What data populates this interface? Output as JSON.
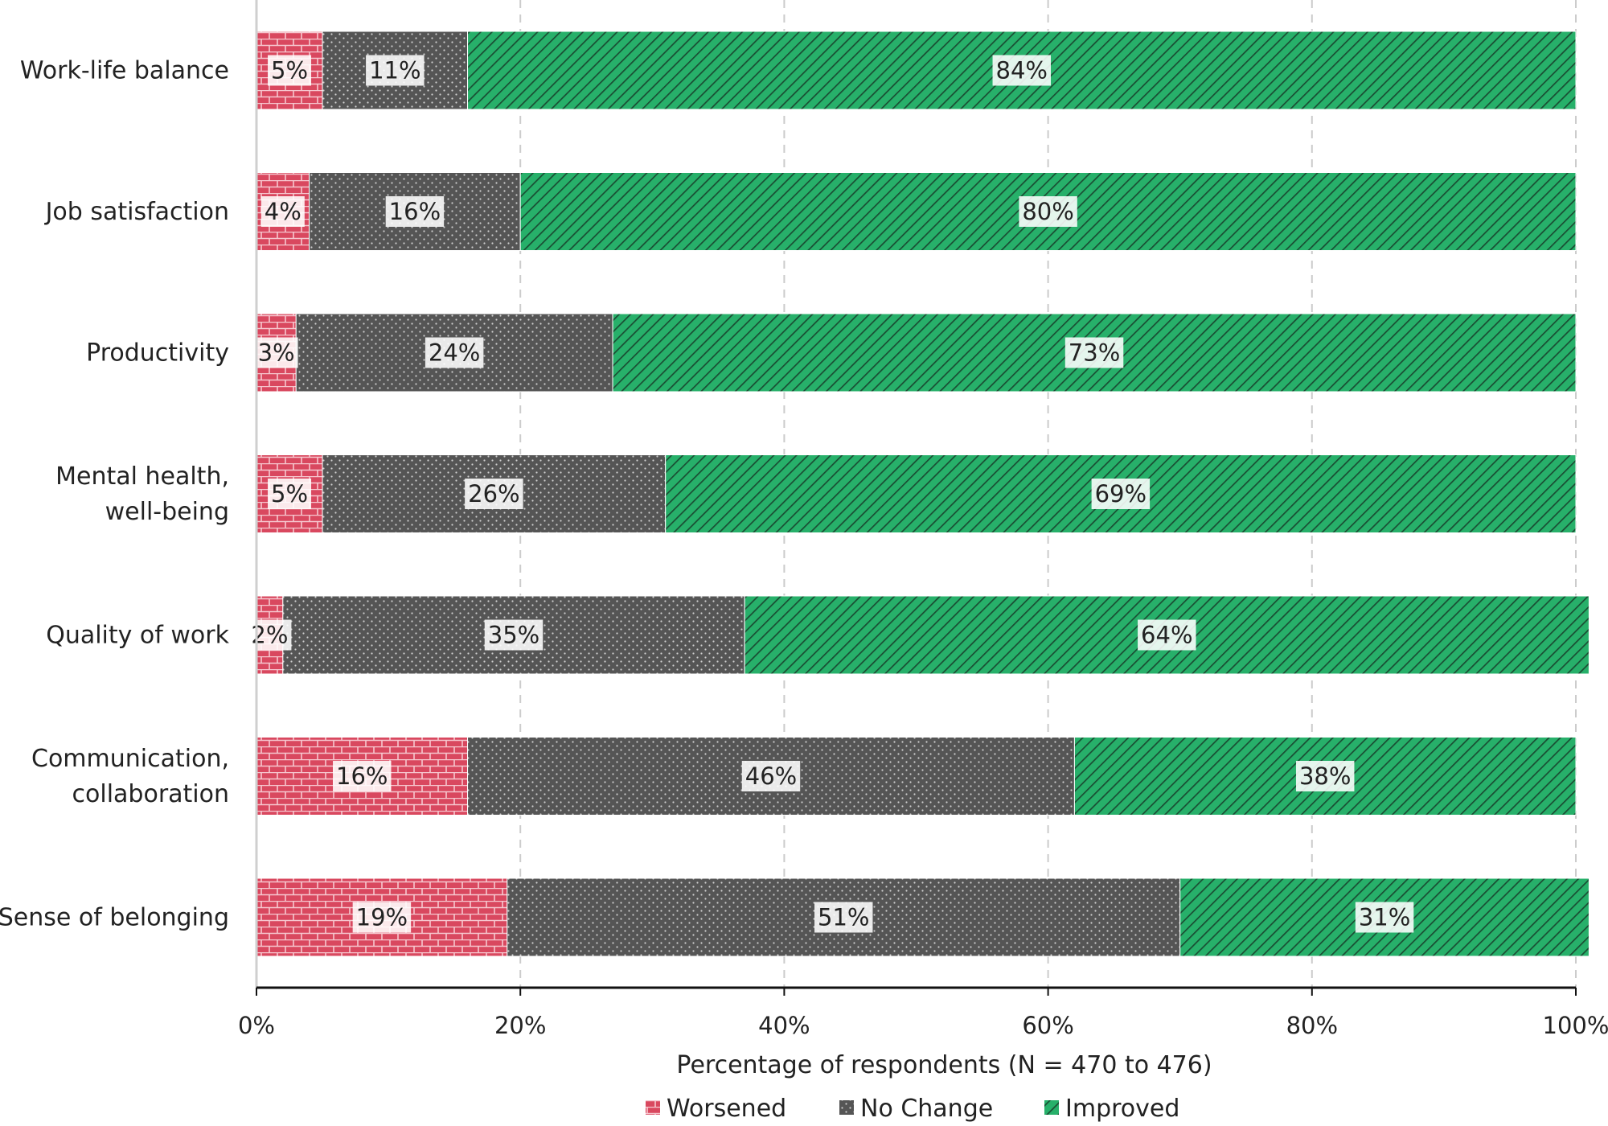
{
  "chart_data": {
    "type": "bar",
    "orientation": "horizontal",
    "stacked": true,
    "categories": [
      [
        "Work-life balance"
      ],
      [
        "Job satisfaction"
      ],
      [
        "Productivity"
      ],
      [
        "Mental health,",
        "well-being"
      ],
      [
        "Quality of work"
      ],
      [
        "Communication,",
        "collaboration"
      ],
      [
        "Sense of belonging"
      ]
    ],
    "series": [
      {
        "name": "Worsened",
        "color": "#d9485f",
        "pattern": "brick",
        "values": [
          5,
          4,
          3,
          5,
          2,
          16,
          19
        ],
        "labels": [
          "5%",
          "4%",
          "3%",
          "5%",
          "2%",
          "16%",
          "19%"
        ]
      },
      {
        "name": "No Change",
        "color": "#555555",
        "pattern": "dots",
        "values": [
          11,
          16,
          24,
          26,
          35,
          46,
          51
        ],
        "labels": [
          "11%",
          "16%",
          "24%",
          "26%",
          "35%",
          "46%",
          "51%"
        ]
      },
      {
        "name": "Improved",
        "color": "#27b06a",
        "pattern": "diagonal-stripes",
        "values": [
          84,
          80,
          73,
          69,
          64,
          38,
          31
        ],
        "labels": [
          "84%",
          "80%",
          "73%",
          "69%",
          "64%",
          "38%",
          "31%"
        ]
      }
    ],
    "xlabel": "Percentage of respondents (N = 470 to 476)",
    "ylabel": "",
    "xlim": [
      0,
      100
    ],
    "xticks": [
      0,
      20,
      40,
      60,
      80,
      100
    ],
    "xtick_labels": [
      "0%",
      "20%",
      "40%",
      "60%",
      "80%",
      "100%"
    ],
    "grid": "vertical-dashed",
    "legend_position": "bottom-center"
  }
}
